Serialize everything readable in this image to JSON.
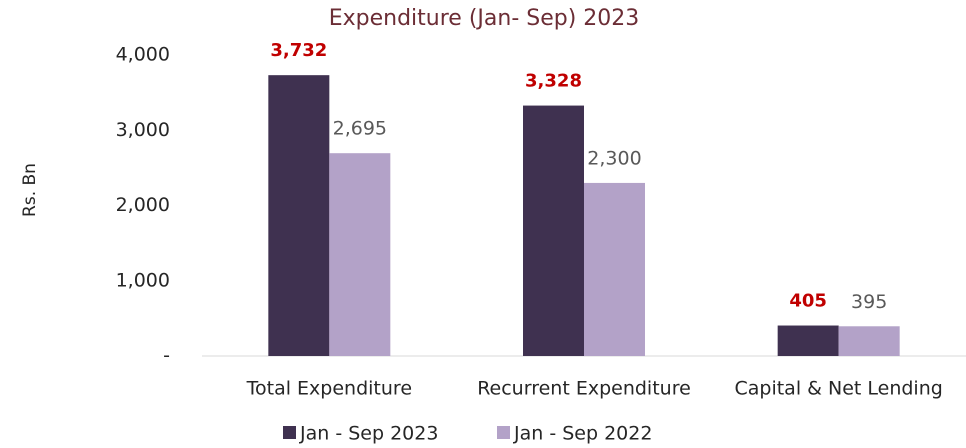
{
  "chart_data": {
    "type": "bar",
    "title": "Expenditure (Jan- Sep) 2023",
    "y_label": "Rs. Bn",
    "categories": [
      "Total Expenditure",
      "Recurrent Expenditure",
      "Capital & Net Lending"
    ],
    "series": [
      {
        "name": "Jan - Sep 2023",
        "color": "#3f3150",
        "label_color": "#c00000",
        "values": [
          3732,
          3328,
          405
        ],
        "value_labels": [
          "3,732",
          "3,328",
          "405"
        ]
      },
      {
        "name": "Jan - Sep 2022",
        "color": "#b3a2c8",
        "label_color": "#595959",
        "values": [
          2695,
          2300,
          395
        ],
        "value_labels": [
          "2,695",
          "2,300",
          "395"
        ]
      }
    ],
    "ylim": [
      0,
      4000
    ],
    "yticks": [
      {
        "value": 0,
        "label": "-"
      },
      {
        "value": 1000,
        "label": "1,000"
      },
      {
        "value": 2000,
        "label": "2,000"
      },
      {
        "value": 3000,
        "label": "3,000"
      },
      {
        "value": 4000,
        "label": "4,000"
      }
    ],
    "grid": false,
    "legend": "bottom"
  }
}
